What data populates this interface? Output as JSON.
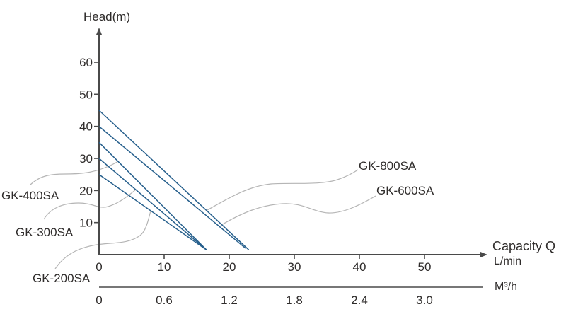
{
  "chart_data": {
    "type": "line",
    "ylabel": "Head(m)",
    "xlabel": "Capacity Q",
    "xunit": "L/min",
    "x2unit": "M³/h",
    "yticks": [
      10,
      20,
      30,
      40,
      50,
      60
    ],
    "xticks": [
      0,
      10,
      20,
      30,
      40,
      50
    ],
    "x2ticks": [
      "0",
      "0.6",
      "1.2",
      "1.8",
      "2.4",
      "3.0"
    ],
    "ylim": [
      0,
      70
    ],
    "xlim": [
      0,
      60
    ],
    "grid": false,
    "legend_position": "callout-labels-with-leader-lines",
    "line_color": "#265f8c",
    "leader_color": "#b5b5b5",
    "axis_color": "#4a4a4a",
    "text_color": "#2f2c2b",
    "series": [
      {
        "name": "GK-800SA",
        "points": [
          [
            0,
            45
          ],
          [
            23,
            1.5
          ]
        ]
      },
      {
        "name": "GK-600SA",
        "points": [
          [
            0,
            40
          ],
          [
            22.5,
            2
          ]
        ]
      },
      {
        "name": "GK-400SA",
        "points": [
          [
            0,
            35
          ],
          [
            16.5,
            1.5
          ]
        ]
      },
      {
        "name": "GK-300SA",
        "points": [
          [
            0,
            30
          ],
          [
            16.5,
            1.5
          ]
        ]
      },
      {
        "name": "GK-200SA",
        "points": [
          [
            0,
            25
          ],
          [
            16.5,
            1.5
          ]
        ]
      }
    ]
  }
}
